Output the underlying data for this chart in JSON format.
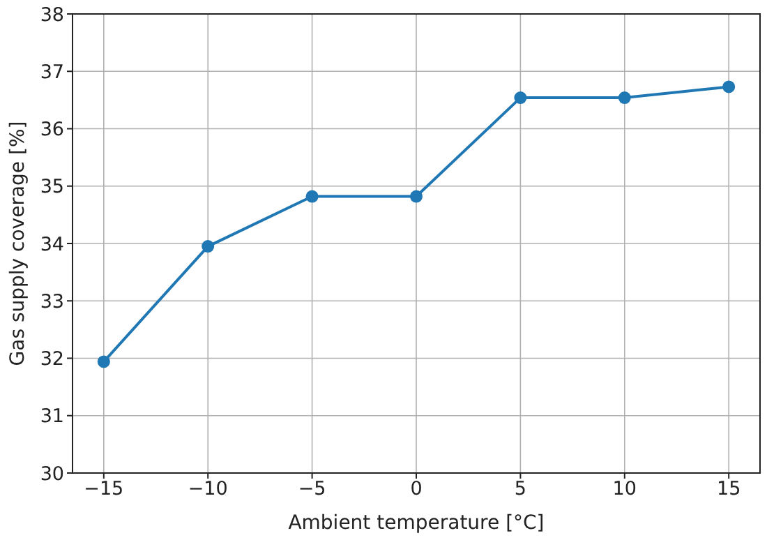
{
  "chart_data": {
    "type": "line",
    "xlabel": "Ambient temperature [°C]",
    "ylabel": "Gas supply coverage [%]",
    "x": [
      -15,
      -10,
      -5,
      0,
      5,
      10,
      15
    ],
    "series": [
      {
        "color": "#1f77b4",
        "values": [
          31.94,
          33.95,
          34.82,
          34.82,
          36.54,
          36.54,
          36.73
        ]
      }
    ],
    "xlim": [
      -16.5,
      16.5
    ],
    "xticks": [
      -15,
      -10,
      -5,
      0,
      5,
      10,
      15
    ],
    "ylim": [
      30,
      38
    ],
    "yticks": [
      30,
      31,
      32,
      33,
      34,
      35,
      36,
      37,
      38
    ],
    "grid": true,
    "marker": "circle",
    "line_style": "solid"
  }
}
